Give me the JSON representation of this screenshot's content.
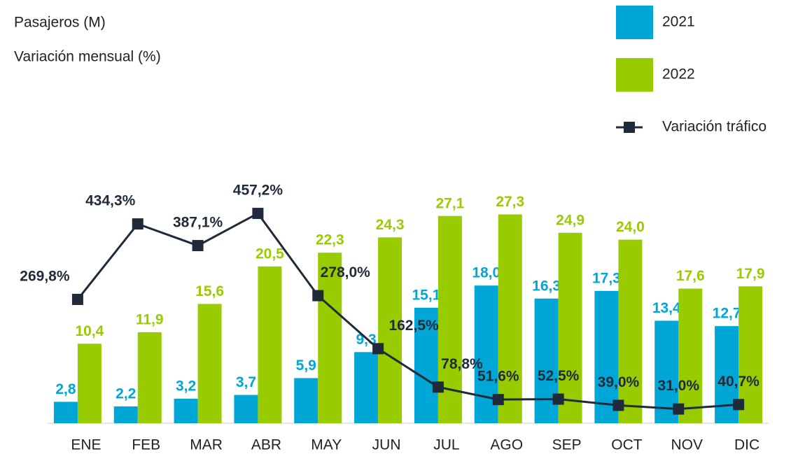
{
  "chart_data": {
    "type": "bar",
    "y_label": "Pasajeros (M)",
    "y2_label": "Variación mensual (%)",
    "categories": [
      "ENE",
      "FEB",
      "MAR",
      "ABR",
      "MAY",
      "JUN",
      "JUL",
      "AGO",
      "SEP",
      "OCT",
      "NOV",
      "DIC"
    ],
    "ylim": [
      0,
      30
    ],
    "y2lim": [
      0,
      500
    ],
    "legend": "top-right",
    "series": [
      {
        "name": "2021",
        "type": "bar",
        "color": "#00a6d6",
        "values": [
          2.8,
          2.2,
          3.2,
          3.7,
          5.9,
          9.3,
          15.1,
          18.0,
          16.3,
          17.3,
          13.4,
          12.7
        ],
        "value_labels": [
          "2,8",
          "2,2",
          "3,2",
          "3,7",
          "5,9",
          "9,3",
          "15,1",
          "18,0",
          "16,3",
          "17,3",
          "13,4",
          "12,7"
        ]
      },
      {
        "name": "2022",
        "type": "bar",
        "color": "#99cc00",
        "values": [
          10.4,
          11.9,
          15.6,
          20.5,
          22.3,
          24.3,
          27.1,
          27.3,
          24.9,
          24.0,
          17.6,
          17.9
        ],
        "value_labels": [
          "10,4",
          "11,9",
          "15,6",
          "20,5",
          "22,3",
          "24,3",
          "27,1",
          "27,3",
          "24,9",
          "24,0",
          "17,6",
          "17,9"
        ]
      },
      {
        "name": "Variación tráfico",
        "type": "line",
        "axis": "y2",
        "color": "#1f2a3a",
        "values": [
          269.8,
          434.3,
          387.1,
          457.2,
          278.0,
          162.5,
          78.8,
          51.6,
          52.5,
          39.0,
          31.0,
          40.7
        ],
        "value_labels": [
          "269,8%",
          "434,3%",
          "387,1%",
          "457,2%",
          "278,0%",
          "162,5%",
          "78,8%",
          "51,6%",
          "52,5%",
          "39,0%",
          "31,0%",
          "40,7%"
        ]
      }
    ]
  }
}
